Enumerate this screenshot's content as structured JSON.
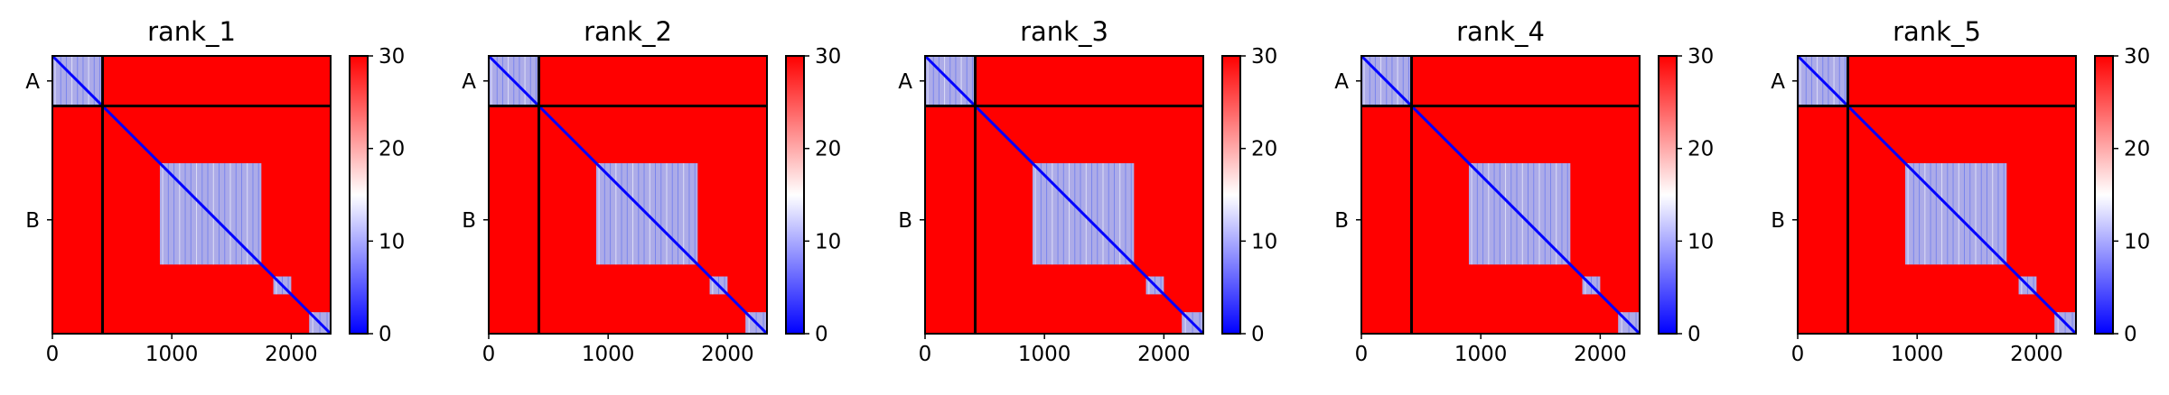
{
  "chart_data": [
    {
      "type": "heatmap",
      "title": "rank_1",
      "x_ticks": [
        0,
        1000,
        2000
      ],
      "xlim": [
        0,
        2330
      ],
      "y_tick_labels": [
        "A",
        "B"
      ],
      "chain_boundary": 420,
      "colorbar": {
        "range": [
          0,
          30
        ],
        "ticks": [
          0,
          10,
          20,
          30
        ],
        "colors": [
          "#0000ff",
          "#ffffff",
          "#ff0000"
        ]
      },
      "low_error_blocks": [
        {
          "x": [
            0,
            420
          ],
          "y": [
            0,
            420
          ]
        },
        {
          "x": [
            900,
            1750
          ],
          "y": [
            900,
            1750
          ]
        },
        {
          "x": [
            1850,
            2000
          ],
          "y": [
            1850,
            2000
          ]
        },
        {
          "x": [
            2150,
            2330
          ],
          "y": [
            2150,
            2330
          ]
        }
      ]
    },
    {
      "type": "heatmap",
      "title": "rank_2",
      "x_ticks": [
        0,
        1000,
        2000
      ],
      "xlim": [
        0,
        2330
      ],
      "y_tick_labels": [
        "A",
        "B"
      ],
      "chain_boundary": 420,
      "colorbar": {
        "range": [
          0,
          30
        ],
        "ticks": [
          0,
          10,
          20,
          30
        ],
        "colors": [
          "#0000ff",
          "#ffffff",
          "#ff0000"
        ]
      },
      "low_error_blocks": [
        {
          "x": [
            0,
            420
          ],
          "y": [
            0,
            420
          ]
        },
        {
          "x": [
            900,
            1750
          ],
          "y": [
            900,
            1750
          ]
        },
        {
          "x": [
            1850,
            2000
          ],
          "y": [
            1850,
            2000
          ]
        },
        {
          "x": [
            2150,
            2330
          ],
          "y": [
            2150,
            2330
          ]
        }
      ]
    },
    {
      "type": "heatmap",
      "title": "rank_3",
      "x_ticks": [
        0,
        1000,
        2000
      ],
      "xlim": [
        0,
        2330
      ],
      "y_tick_labels": [
        "A",
        "B"
      ],
      "chain_boundary": 420,
      "colorbar": {
        "range": [
          0,
          30
        ],
        "ticks": [
          0,
          10,
          20,
          30
        ],
        "colors": [
          "#0000ff",
          "#ffffff",
          "#ff0000"
        ]
      },
      "low_error_blocks": [
        {
          "x": [
            0,
            420
          ],
          "y": [
            0,
            420
          ]
        },
        {
          "x": [
            900,
            1750
          ],
          "y": [
            900,
            1750
          ]
        },
        {
          "x": [
            1850,
            2000
          ],
          "y": [
            1850,
            2000
          ]
        },
        {
          "x": [
            2150,
            2330
          ],
          "y": [
            2150,
            2330
          ]
        }
      ]
    },
    {
      "type": "heatmap",
      "title": "rank_4",
      "x_ticks": [
        0,
        1000,
        2000
      ],
      "xlim": [
        0,
        2330
      ],
      "y_tick_labels": [
        "A",
        "B"
      ],
      "chain_boundary": 420,
      "colorbar": {
        "range": [
          0,
          30
        ],
        "ticks": [
          0,
          10,
          20,
          30
        ],
        "colors": [
          "#0000ff",
          "#ffffff",
          "#ff0000"
        ]
      },
      "low_error_blocks": [
        {
          "x": [
            0,
            420
          ],
          "y": [
            0,
            420
          ]
        },
        {
          "x": [
            900,
            1750
          ],
          "y": [
            900,
            1750
          ]
        },
        {
          "x": [
            1850,
            2000
          ],
          "y": [
            1850,
            2000
          ]
        },
        {
          "x": [
            2150,
            2330
          ],
          "y": [
            2150,
            2330
          ]
        }
      ]
    },
    {
      "type": "heatmap",
      "title": "rank_5",
      "x_ticks": [
        0,
        1000,
        2000
      ],
      "xlim": [
        0,
        2330
      ],
      "y_tick_labels": [
        "A",
        "B"
      ],
      "chain_boundary": 420,
      "colorbar": {
        "range": [
          0,
          30
        ],
        "ticks": [
          0,
          10,
          20,
          30
        ],
        "colors": [
          "#0000ff",
          "#ffffff",
          "#ff0000"
        ]
      },
      "low_error_blocks": [
        {
          "x": [
            0,
            420
          ],
          "y": [
            0,
            420
          ]
        },
        {
          "x": [
            900,
            1750
          ],
          "y": [
            900,
            1750
          ]
        },
        {
          "x": [
            1850,
            2000
          ],
          "y": [
            1850,
            2000
          ]
        },
        {
          "x": [
            2150,
            2330
          ],
          "y": [
            2150,
            2330
          ]
        }
      ]
    }
  ]
}
